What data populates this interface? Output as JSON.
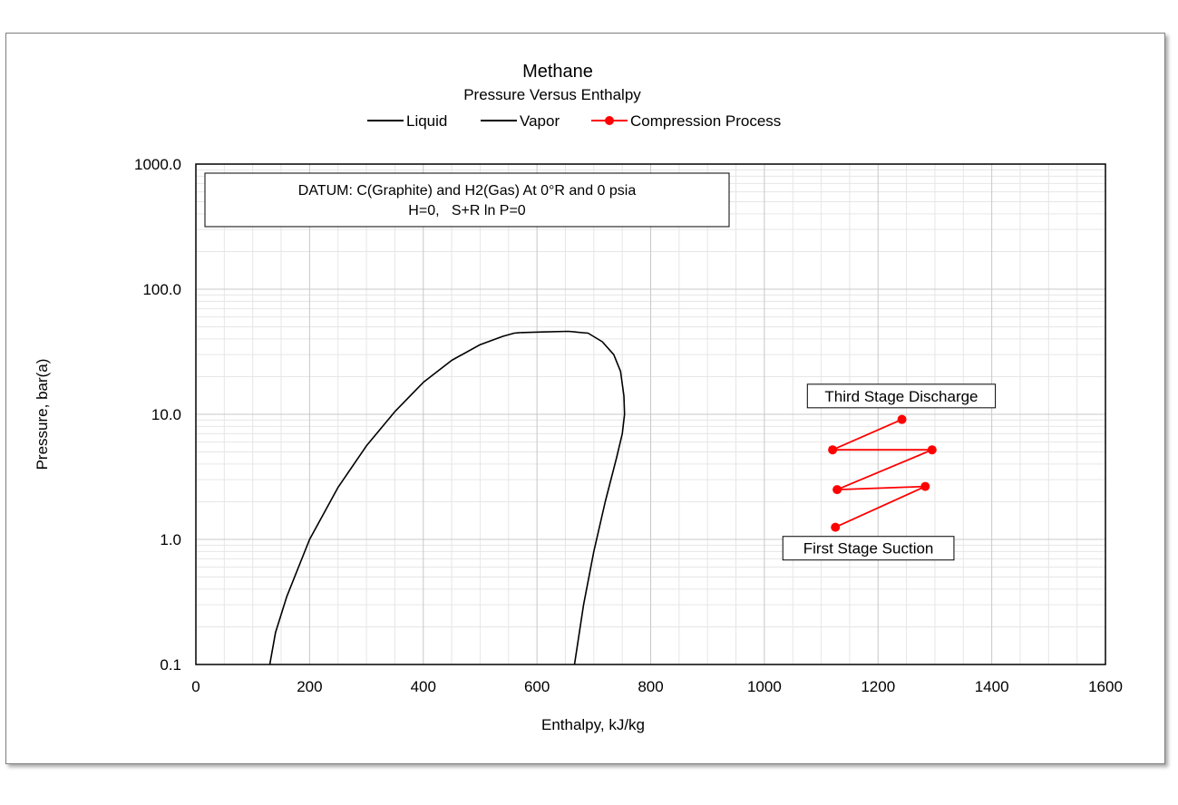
{
  "chart_data": {
    "type": "line",
    "title": "Methane",
    "subtitle": "Pressure Versus Enthalpy",
    "xlabel": "Enthalpy, kJ/kg",
    "ylabel": "Pressure, bar(a)",
    "xlim": [
      0,
      1600
    ],
    "ylim": [
      0.1,
      1000
    ],
    "yscale": "log",
    "grid": true,
    "legend_position": "top",
    "x_ticks": [
      0,
      200,
      400,
      600,
      800,
      1000,
      1200,
      1400,
      1600
    ],
    "x_tick_labels": [
      "0",
      "200",
      "400",
      "600",
      "800",
      "1000",
      "1200",
      "1400",
      "1600"
    ],
    "y_ticks": [
      0.1,
      1,
      10,
      100,
      1000
    ],
    "y_tick_labels": [
      "0.1",
      "1.0",
      "10.0",
      "100.0",
      "1000.0"
    ],
    "datum_box": {
      "line1": "DATUM: C(Graphite) and H2(Gas) At 0°R and 0 psia",
      "line2": "H=0,   S+R ln P=0"
    },
    "series": [
      {
        "name": "Liquid",
        "color": "#000000",
        "marker": "none",
        "x": [
          130,
          140,
          160,
          200,
          250,
          300,
          350,
          400,
          450,
          500,
          540,
          560,
          570
        ],
        "y": [
          0.1,
          0.18,
          0.35,
          1.0,
          2.6,
          5.6,
          10.5,
          18,
          27,
          36,
          42,
          44.5,
          45
        ]
      },
      {
        "name": "Vapor",
        "color": "#000000",
        "marker": "none",
        "x": [
          570,
          610,
          655,
          690,
          715,
          735,
          747,
          753,
          754,
          750,
          740,
          720,
          700,
          682,
          666
        ],
        "y": [
          45,
          45.5,
          46,
          44.5,
          38,
          30,
          22,
          14,
          10,
          7,
          4.5,
          2.0,
          0.8,
          0.3,
          0.1
        ]
      },
      {
        "name": "Compression Process",
        "color": "#ff0000",
        "marker": "circle",
        "x": [
          1125,
          1283,
          1128,
          1295,
          1120,
          1242
        ],
        "y": [
          1.25,
          2.65,
          2.5,
          5.2,
          5.2,
          9.1
        ]
      }
    ],
    "annotations": [
      {
        "text": "Third Stage Discharge",
        "x": 1241,
        "y": 14
      },
      {
        "text": "First Stage Suction",
        "x": 1183,
        "y": 0.85
      }
    ]
  }
}
